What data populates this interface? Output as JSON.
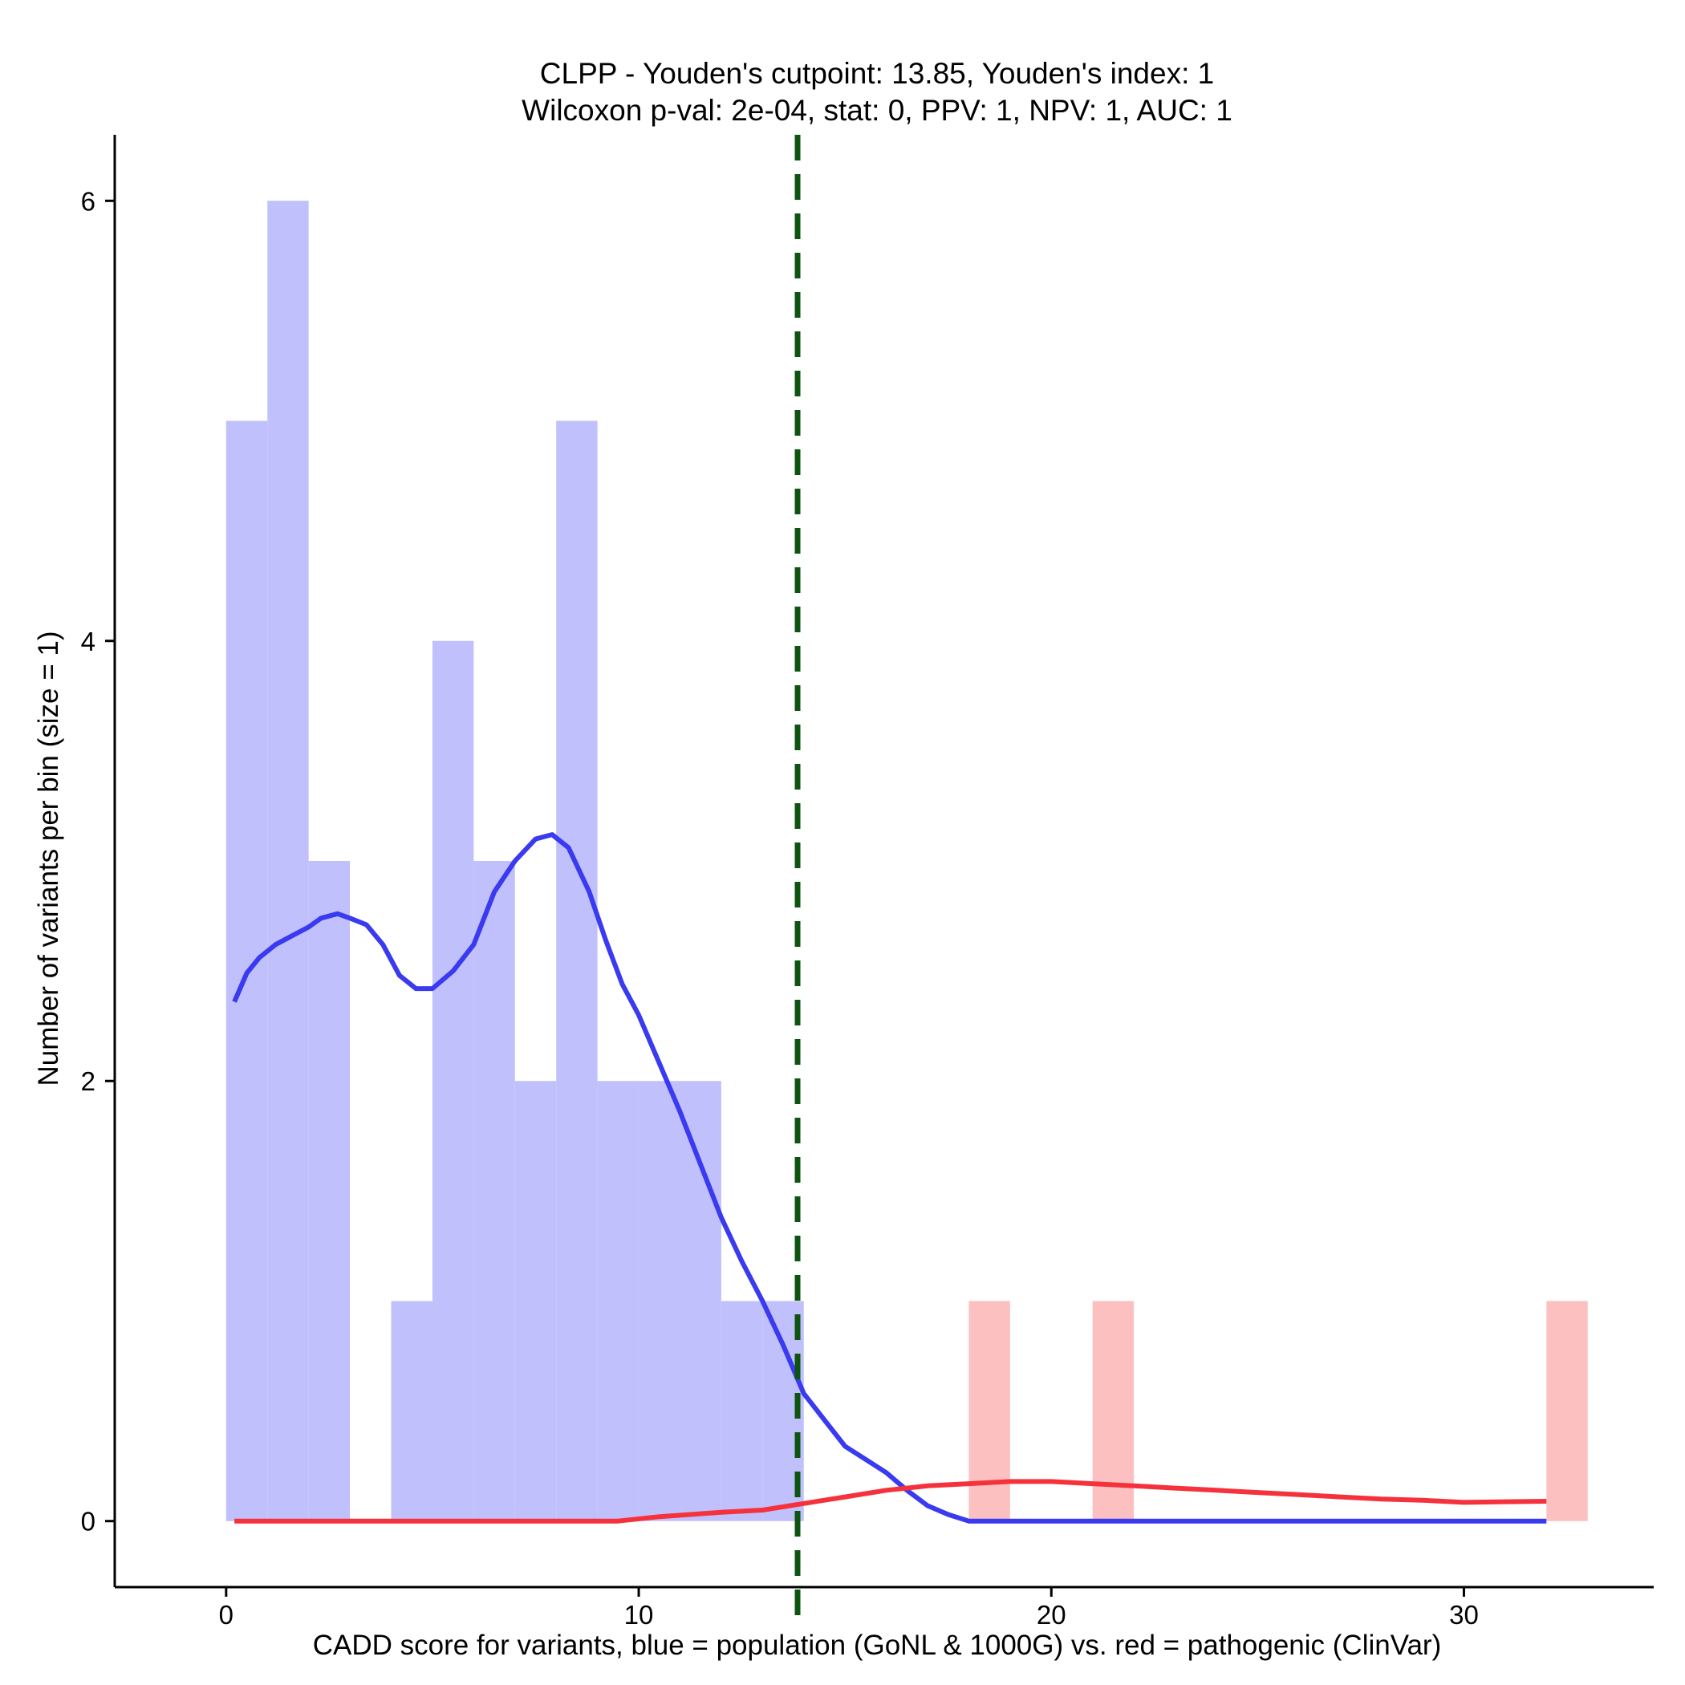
{
  "chart_data": {
    "type": "bar",
    "title": "CLPP - Youden's cutpoint: 13.85, Youden's index: 1",
    "subtitle": "Wilcoxon p-val: 2e-04, stat: 0, PPV: 1, NPV: 1, AUC: 1",
    "xlabel": "CADD score for variants, blue = population (GoNL & 1000G) vs. red = pathogenic (ClinVar)",
    "ylabel": "Number of variants per bin (size = 1)",
    "xlim": [
      -2.7,
      34.6
    ],
    "ylim": [
      -0.3,
      6.3
    ],
    "x_ticks": [
      0,
      10,
      20,
      30
    ],
    "y_ticks": [
      0,
      2,
      4,
      6
    ],
    "grid": false,
    "bin_size": 1,
    "colors": {
      "population_bar": "#c0c0fc",
      "pathogenic_bar": "#fdc0c0",
      "population_line": "#3a3af0",
      "pathogenic_line": "#f5323c",
      "cutpoint_line": "#0d5410"
    },
    "cutpoint": 13.85,
    "series": [
      {
        "bins": [
          {
            "x0": 0,
            "x1": 1,
            "count": 5
          },
          {
            "x0": 1,
            "x1": 2,
            "count": 6
          },
          {
            "x0": 2,
            "x1": 3,
            "count": 3
          },
          {
            "x0": 4,
            "x1": 5,
            "count": 1
          },
          {
            "x0": 5,
            "x1": 6,
            "count": 4
          },
          {
            "x0": 6,
            "x1": 7,
            "count": 3
          },
          {
            "x0": 7,
            "x1": 8,
            "count": 2
          },
          {
            "x0": 8,
            "x1": 9,
            "count": 5
          },
          {
            "x0": 9,
            "x1": 10,
            "count": 2
          },
          {
            "x0": 10,
            "x1": 11,
            "count": 2
          },
          {
            "x0": 11,
            "x1": 12,
            "count": 2
          },
          {
            "x0": 12,
            "x1": 13,
            "count": 1
          },
          {
            "x0": 13,
            "x1": 14,
            "count": 1
          }
        ],
        "density_curve": [
          [
            0.2,
            2.36
          ],
          [
            0.5,
            2.49
          ],
          [
            0.8,
            2.56
          ],
          [
            1.2,
            2.62
          ],
          [
            1.6,
            2.66
          ],
          [
            2.0,
            2.7
          ],
          [
            2.3,
            2.74
          ],
          [
            2.7,
            2.76
          ],
          [
            3.0,
            2.74
          ],
          [
            3.4,
            2.71
          ],
          [
            3.8,
            2.62
          ],
          [
            4.2,
            2.48
          ],
          [
            4.6,
            2.42
          ],
          [
            5.0,
            2.42
          ],
          [
            5.5,
            2.5
          ],
          [
            6.0,
            2.62
          ],
          [
            6.5,
            2.86
          ],
          [
            7.0,
            3.0
          ],
          [
            7.5,
            3.1
          ],
          [
            7.9,
            3.12
          ],
          [
            8.3,
            3.06
          ],
          [
            8.8,
            2.86
          ],
          [
            9.2,
            2.64
          ],
          [
            9.6,
            2.44
          ],
          [
            10.0,
            2.3
          ],
          [
            10.5,
            2.08
          ],
          [
            11.0,
            1.86
          ],
          [
            11.5,
            1.62
          ],
          [
            12.0,
            1.38
          ],
          [
            12.5,
            1.18
          ],
          [
            13.0,
            1.0
          ],
          [
            13.5,
            0.8
          ],
          [
            14.0,
            0.58
          ],
          [
            14.5,
            0.46
          ],
          [
            15.0,
            0.34
          ],
          [
            15.5,
            0.28
          ],
          [
            16.0,
            0.22
          ],
          [
            16.5,
            0.14
          ],
          [
            17.0,
            0.07
          ],
          [
            17.5,
            0.03
          ],
          [
            18.0,
            0.0
          ],
          [
            20.0,
            0.0
          ],
          [
            25.0,
            0.0
          ],
          [
            30.0,
            0.0
          ],
          [
            32.0,
            0.0
          ]
        ]
      },
      {
        "bins": [
          {
            "x0": 18,
            "x1": 19,
            "count": 1
          },
          {
            "x0": 21,
            "x1": 22,
            "count": 1
          },
          {
            "x0": 32,
            "x1": 33,
            "count": 1
          }
        ],
        "density_curve": [
          [
            0.2,
            0.0
          ],
          [
            5.0,
            0.0
          ],
          [
            9.5,
            0.0
          ],
          [
            10.5,
            0.02
          ],
          [
            12.0,
            0.04
          ],
          [
            13.0,
            0.05
          ],
          [
            14.0,
            0.08
          ],
          [
            15.0,
            0.11
          ],
          [
            16.0,
            0.14
          ],
          [
            17.0,
            0.16
          ],
          [
            18.0,
            0.17
          ],
          [
            19.0,
            0.18
          ],
          [
            20.0,
            0.18
          ],
          [
            21.0,
            0.17
          ],
          [
            22.0,
            0.16
          ],
          [
            23.0,
            0.15
          ],
          [
            24.0,
            0.14
          ],
          [
            25.0,
            0.13
          ],
          [
            26.0,
            0.12
          ],
          [
            27.0,
            0.11
          ],
          [
            28.0,
            0.1
          ],
          [
            29.0,
            0.095
          ],
          [
            30.0,
            0.085
          ],
          [
            31.0,
            0.088
          ],
          [
            32.0,
            0.09
          ]
        ]
      }
    ]
  }
}
